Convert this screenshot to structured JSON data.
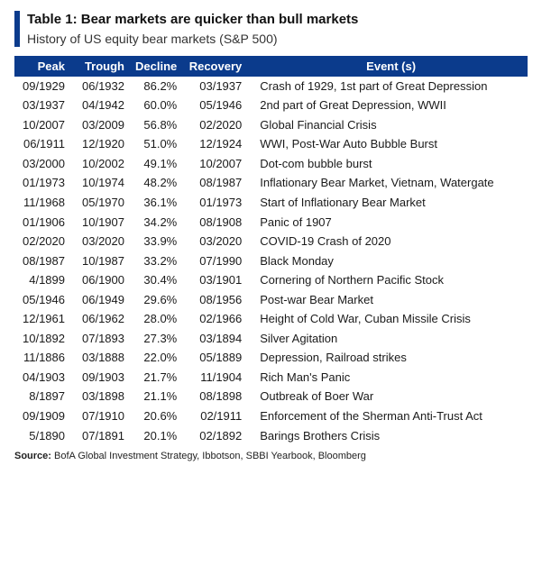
{
  "header": {
    "title_prefix": "Table 1:",
    "title_rest": " Bear markets are quicker than bull markets",
    "subtitle": "History of US equity bear markets (S&P 500)",
    "accent_color": "#0b3b8c"
  },
  "table": {
    "columns": [
      "Peak",
      "Trough",
      "Decline",
      "Recovery",
      "Event (s)"
    ],
    "col_align": [
      "right",
      "right",
      "right",
      "right",
      "left"
    ],
    "header_bg": "#0b3b8c",
    "header_fg": "#ffffff",
    "rows": [
      {
        "peak": "09/1929",
        "trough": "06/1932",
        "decline": "86.2%",
        "recovery": "03/1937",
        "event": "Crash of 1929, 1st part of Great Depression"
      },
      {
        "peak": "03/1937",
        "trough": "04/1942",
        "decline": "60.0%",
        "recovery": "05/1946",
        "event": "2nd part of Great Depression, WWII"
      },
      {
        "peak": "10/2007",
        "trough": "03/2009",
        "decline": "56.8%",
        "recovery": "02/2020",
        "event": "Global Financial Crisis"
      },
      {
        "peak": "06/1911",
        "trough": "12/1920",
        "decline": "51.0%",
        "recovery": "12/1924",
        "event": "WWI, Post-War Auto Bubble Burst"
      },
      {
        "peak": "03/2000",
        "trough": "10/2002",
        "decline": "49.1%",
        "recovery": "10/2007",
        "event": "Dot-com bubble burst"
      },
      {
        "peak": "01/1973",
        "trough": "10/1974",
        "decline": "48.2%",
        "recovery": "08/1987",
        "event": "Inflationary Bear Market, Vietnam, Watergate"
      },
      {
        "peak": "11/1968",
        "trough": "05/1970",
        "decline": "36.1%",
        "recovery": "01/1973",
        "event": "Start of Inflationary Bear Market"
      },
      {
        "peak": "01/1906",
        "trough": "10/1907",
        "decline": "34.2%",
        "recovery": "08/1908",
        "event": "Panic of 1907"
      },
      {
        "peak": "02/2020",
        "trough": "03/2020",
        "decline": "33.9%",
        "recovery": "03/2020",
        "event": "COVID-19 Crash of 2020"
      },
      {
        "peak": "08/1987",
        "trough": "10/1987",
        "decline": "33.2%",
        "recovery": "07/1990",
        "event": "Black Monday"
      },
      {
        "peak": "4/1899",
        "trough": "06/1900",
        "decline": "30.4%",
        "recovery": "03/1901",
        "event": "Cornering of Northern Pacific Stock"
      },
      {
        "peak": "05/1946",
        "trough": "06/1949",
        "decline": "29.6%",
        "recovery": "08/1956",
        "event": "Post-war Bear Market"
      },
      {
        "peak": "12/1961",
        "trough": "06/1962",
        "decline": "28.0%",
        "recovery": "02/1966",
        "event": "Height of Cold War, Cuban Missile Crisis"
      },
      {
        "peak": "10/1892",
        "trough": "07/1893",
        "decline": "27.3%",
        "recovery": "03/1894",
        "event": "Silver Agitation"
      },
      {
        "peak": "11/1886",
        "trough": "03/1888",
        "decline": "22.0%",
        "recovery": "05/1889",
        "event": "Depression, Railroad strikes"
      },
      {
        "peak": "04/1903",
        "trough": "09/1903",
        "decline": "21.7%",
        "recovery": "11/1904",
        "event": "Rich Man's Panic"
      },
      {
        "peak": "8/1897",
        "trough": "03/1898",
        "decline": "21.1%",
        "recovery": "08/1898",
        "event": "Outbreak of Boer War"
      },
      {
        "peak": "09/1909",
        "trough": "07/1910",
        "decline": "20.6%",
        "recovery": "02/1911",
        "event": "Enforcement of the Sherman Anti-Trust Act"
      },
      {
        "peak": "5/1890",
        "trough": "07/1891",
        "decline": "20.1%",
        "recovery": "02/1892",
        "event": "Barings Brothers Crisis"
      }
    ]
  },
  "source": {
    "label": "Source:",
    "text": "  BofA Global Investment Strategy, Ibbotson, SBBI Yearbook, Bloomberg"
  }
}
